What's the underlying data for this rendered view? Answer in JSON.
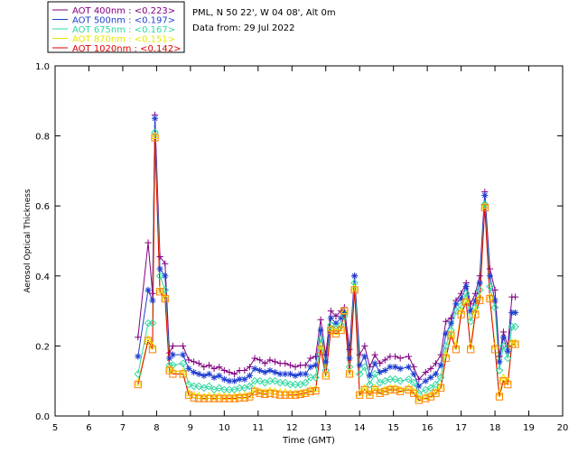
{
  "info": {
    "station": "PML, N 50 22', W 04 08', Alt 0m",
    "date_line": "Data from: 29 Jul 2022"
  },
  "colors": {
    "AOT 400nm": "#800080",
    "AOT 500nm": "#1f3fd0",
    "AOT 675nm": "#2fd8a0",
    "AOT 870nm": "#e8e800",
    "AOT 1020nm": "#e00000",
    "marker_1020": "#ff8000"
  },
  "chart_data": {
    "type": "line",
    "title": "",
    "xlabel": "Time (GMT)",
    "ylabel": "Aerosol Optical Thickness",
    "xlim": [
      5,
      20
    ],
    "ylim": [
      0.0,
      1.0
    ],
    "xticks": [
      "5",
      "6",
      "7",
      "8",
      "9",
      "10",
      "11",
      "12",
      "13",
      "14",
      "15",
      "16",
      "17",
      "18",
      "19",
      "20"
    ],
    "yticks": [
      "0.0",
      "0.2",
      "0.4",
      "0.6",
      "0.8",
      "1.0"
    ],
    "grid": false,
    "legend_placement": "top-left, above plot",
    "x": [
      7.45,
      7.75,
      7.88,
      7.95,
      8.1,
      8.25,
      8.38,
      8.48,
      8.78,
      8.95,
      9.1,
      9.25,
      9.4,
      9.55,
      9.7,
      9.85,
      10.0,
      10.15,
      10.3,
      10.45,
      10.6,
      10.75,
      10.9,
      11.05,
      11.2,
      11.35,
      11.5,
      11.65,
      11.8,
      11.95,
      12.1,
      12.25,
      12.4,
      12.55,
      12.7,
      12.85,
      13.0,
      13.15,
      13.3,
      13.45,
      13.55,
      13.7,
      13.85,
      14.0,
      14.15,
      14.3,
      14.45,
      14.6,
      14.75,
      14.9,
      15.05,
      15.2,
      15.45,
      15.6,
      15.75,
      15.95,
      16.1,
      16.25,
      16.4,
      16.55,
      16.7,
      16.85,
      17.0,
      17.15,
      17.28,
      17.42,
      17.55,
      17.7,
      17.85,
      18.0,
      18.13,
      18.25,
      18.38,
      18.5,
      18.6
    ],
    "series": [
      {
        "name": "AOT  400nm : <0.223>",
        "symbol": "+",
        "values": [
          0.225,
          0.495,
          0.35,
          0.86,
          0.455,
          0.435,
          0.18,
          0.2,
          0.2,
          0.16,
          0.155,
          0.15,
          0.14,
          0.145,
          0.135,
          0.14,
          0.13,
          0.125,
          0.12,
          0.13,
          0.13,
          0.14,
          0.165,
          0.16,
          0.15,
          0.16,
          0.155,
          0.15,
          0.15,
          0.145,
          0.14,
          0.145,
          0.145,
          0.165,
          0.17,
          0.275,
          0.175,
          0.3,
          0.285,
          0.3,
          0.31,
          0.19,
          0.4,
          0.175,
          0.2,
          0.14,
          0.175,
          0.15,
          0.16,
          0.17,
          0.17,
          0.165,
          0.17,
          0.14,
          0.105,
          0.125,
          0.135,
          0.15,
          0.175,
          0.27,
          0.28,
          0.33,
          0.35,
          0.38,
          0.32,
          0.35,
          0.4,
          0.64,
          0.42,
          0.36,
          0.17,
          0.24,
          0.2,
          0.34,
          0.34
        ]
      },
      {
        "name": "AOT  500nm : <0.197>",
        "symbol": "*",
        "values": [
          0.17,
          0.36,
          0.33,
          0.85,
          0.42,
          0.4,
          0.165,
          0.175,
          0.175,
          0.135,
          0.125,
          0.12,
          0.115,
          0.12,
          0.11,
          0.115,
          0.105,
          0.1,
          0.1,
          0.105,
          0.105,
          0.115,
          0.135,
          0.13,
          0.125,
          0.13,
          0.125,
          0.12,
          0.12,
          0.12,
          0.115,
          0.12,
          0.12,
          0.14,
          0.145,
          0.245,
          0.155,
          0.28,
          0.265,
          0.28,
          0.295,
          0.165,
          0.4,
          0.145,
          0.17,
          0.115,
          0.15,
          0.125,
          0.13,
          0.14,
          0.14,
          0.135,
          0.14,
          0.12,
          0.085,
          0.1,
          0.11,
          0.12,
          0.145,
          0.235,
          0.265,
          0.32,
          0.335,
          0.37,
          0.3,
          0.33,
          0.38,
          0.63,
          0.4,
          0.33,
          0.155,
          0.225,
          0.185,
          0.295,
          0.295
        ]
      },
      {
        "name": "AOT  675nm : <0.167>",
        "symbol": "◇",
        "values": [
          0.12,
          0.265,
          0.265,
          0.81,
          0.4,
          0.36,
          0.145,
          0.145,
          0.15,
          0.09,
          0.085,
          0.085,
          0.08,
          0.085,
          0.075,
          0.08,
          0.075,
          0.075,
          0.075,
          0.08,
          0.08,
          0.085,
          0.1,
          0.1,
          0.095,
          0.1,
          0.1,
          0.095,
          0.095,
          0.09,
          0.09,
          0.09,
          0.095,
          0.11,
          0.11,
          0.22,
          0.13,
          0.26,
          0.25,
          0.26,
          0.285,
          0.14,
          0.38,
          0.12,
          0.14,
          0.09,
          0.12,
          0.095,
          0.1,
          0.105,
          0.105,
          0.1,
          0.105,
          0.095,
          0.065,
          0.075,
          0.08,
          0.09,
          0.11,
          0.2,
          0.245,
          0.3,
          0.315,
          0.35,
          0.27,
          0.31,
          0.36,
          0.605,
          0.37,
          0.31,
          0.13,
          0.2,
          0.165,
          0.255,
          0.255
        ]
      },
      {
        "name": "AOT  870nm : <0.151>",
        "symbol": "△",
        "values": [
          0.095,
          0.22,
          0.2,
          0.8,
          0.36,
          0.34,
          0.135,
          0.13,
          0.125,
          0.065,
          0.06,
          0.058,
          0.055,
          0.058,
          0.055,
          0.058,
          0.055,
          0.055,
          0.055,
          0.058,
          0.058,
          0.06,
          0.075,
          0.07,
          0.068,
          0.072,
          0.07,
          0.068,
          0.068,
          0.065,
          0.065,
          0.065,
          0.068,
          0.075,
          0.078,
          0.2,
          0.12,
          0.25,
          0.24,
          0.25,
          0.3,
          0.125,
          0.365,
          0.065,
          0.08,
          0.065,
          0.08,
          0.07,
          0.075,
          0.08,
          0.08,
          0.075,
          0.08,
          0.07,
          0.05,
          0.055,
          0.06,
          0.07,
          0.085,
          0.175,
          0.235,
          0.2,
          0.3,
          0.33,
          0.2,
          0.3,
          0.34,
          0.6,
          0.34,
          0.2,
          0.065,
          0.11,
          0.1,
          0.21,
          0.21
        ]
      },
      {
        "name": "AOT 1020nm : <0.142>",
        "symbol": "□",
        "values": [
          0.09,
          0.215,
          0.19,
          0.795,
          0.355,
          0.335,
          0.13,
          0.12,
          0.12,
          0.06,
          0.052,
          0.05,
          0.05,
          0.05,
          0.05,
          0.05,
          0.05,
          0.05,
          0.05,
          0.052,
          0.052,
          0.055,
          0.07,
          0.065,
          0.062,
          0.065,
          0.063,
          0.06,
          0.06,
          0.06,
          0.06,
          0.062,
          0.065,
          0.07,
          0.072,
          0.19,
          0.115,
          0.245,
          0.235,
          0.245,
          0.3,
          0.12,
          0.36,
          0.06,
          0.075,
          0.06,
          0.075,
          0.065,
          0.07,
          0.075,
          0.075,
          0.07,
          0.075,
          0.065,
          0.045,
          0.05,
          0.055,
          0.065,
          0.08,
          0.165,
          0.23,
          0.19,
          0.29,
          0.325,
          0.19,
          0.29,
          0.33,
          0.595,
          0.335,
          0.19,
          0.055,
          0.1,
          0.09,
          0.205,
          0.205
        ]
      }
    ]
  }
}
